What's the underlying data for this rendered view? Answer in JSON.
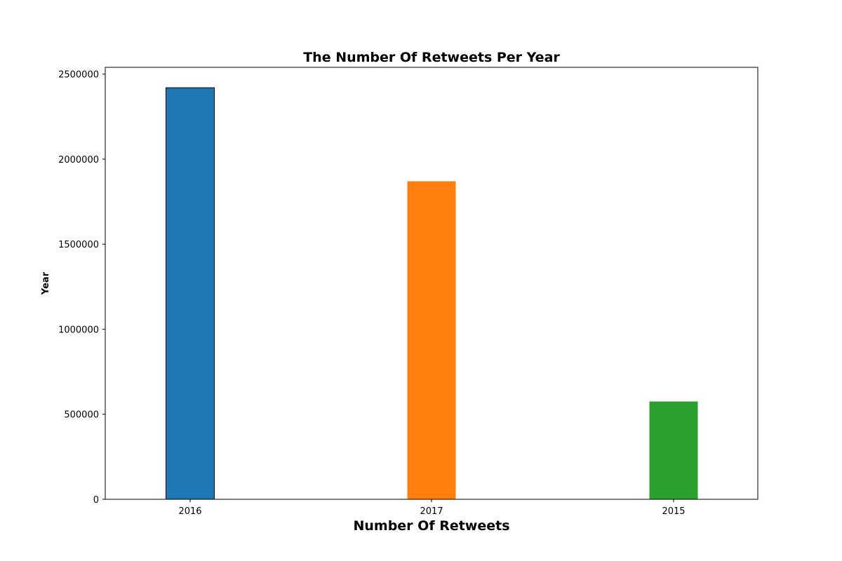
{
  "chart_data": {
    "type": "bar",
    "title": "The Number Of Retweets Per Year",
    "xlabel": "Number Of Retweets",
    "ylabel": "Year",
    "categories": [
      "2016",
      "2017",
      "2015"
    ],
    "values": [
      2420000,
      1870000,
      575000
    ],
    "colors": [
      "#1f77b4",
      "#ff7f0e",
      "#2ca02c"
    ],
    "outlined": [
      true,
      false,
      false
    ],
    "ylim": [
      0,
      2540000
    ],
    "yticks": [
      0,
      500000,
      1000000,
      1500000,
      2000000,
      2500000
    ],
    "ytick_labels": [
      "0",
      "500000",
      "1000000",
      "1500000",
      "2000000",
      "2500000"
    ],
    "grid": false,
    "legend": "none"
  }
}
